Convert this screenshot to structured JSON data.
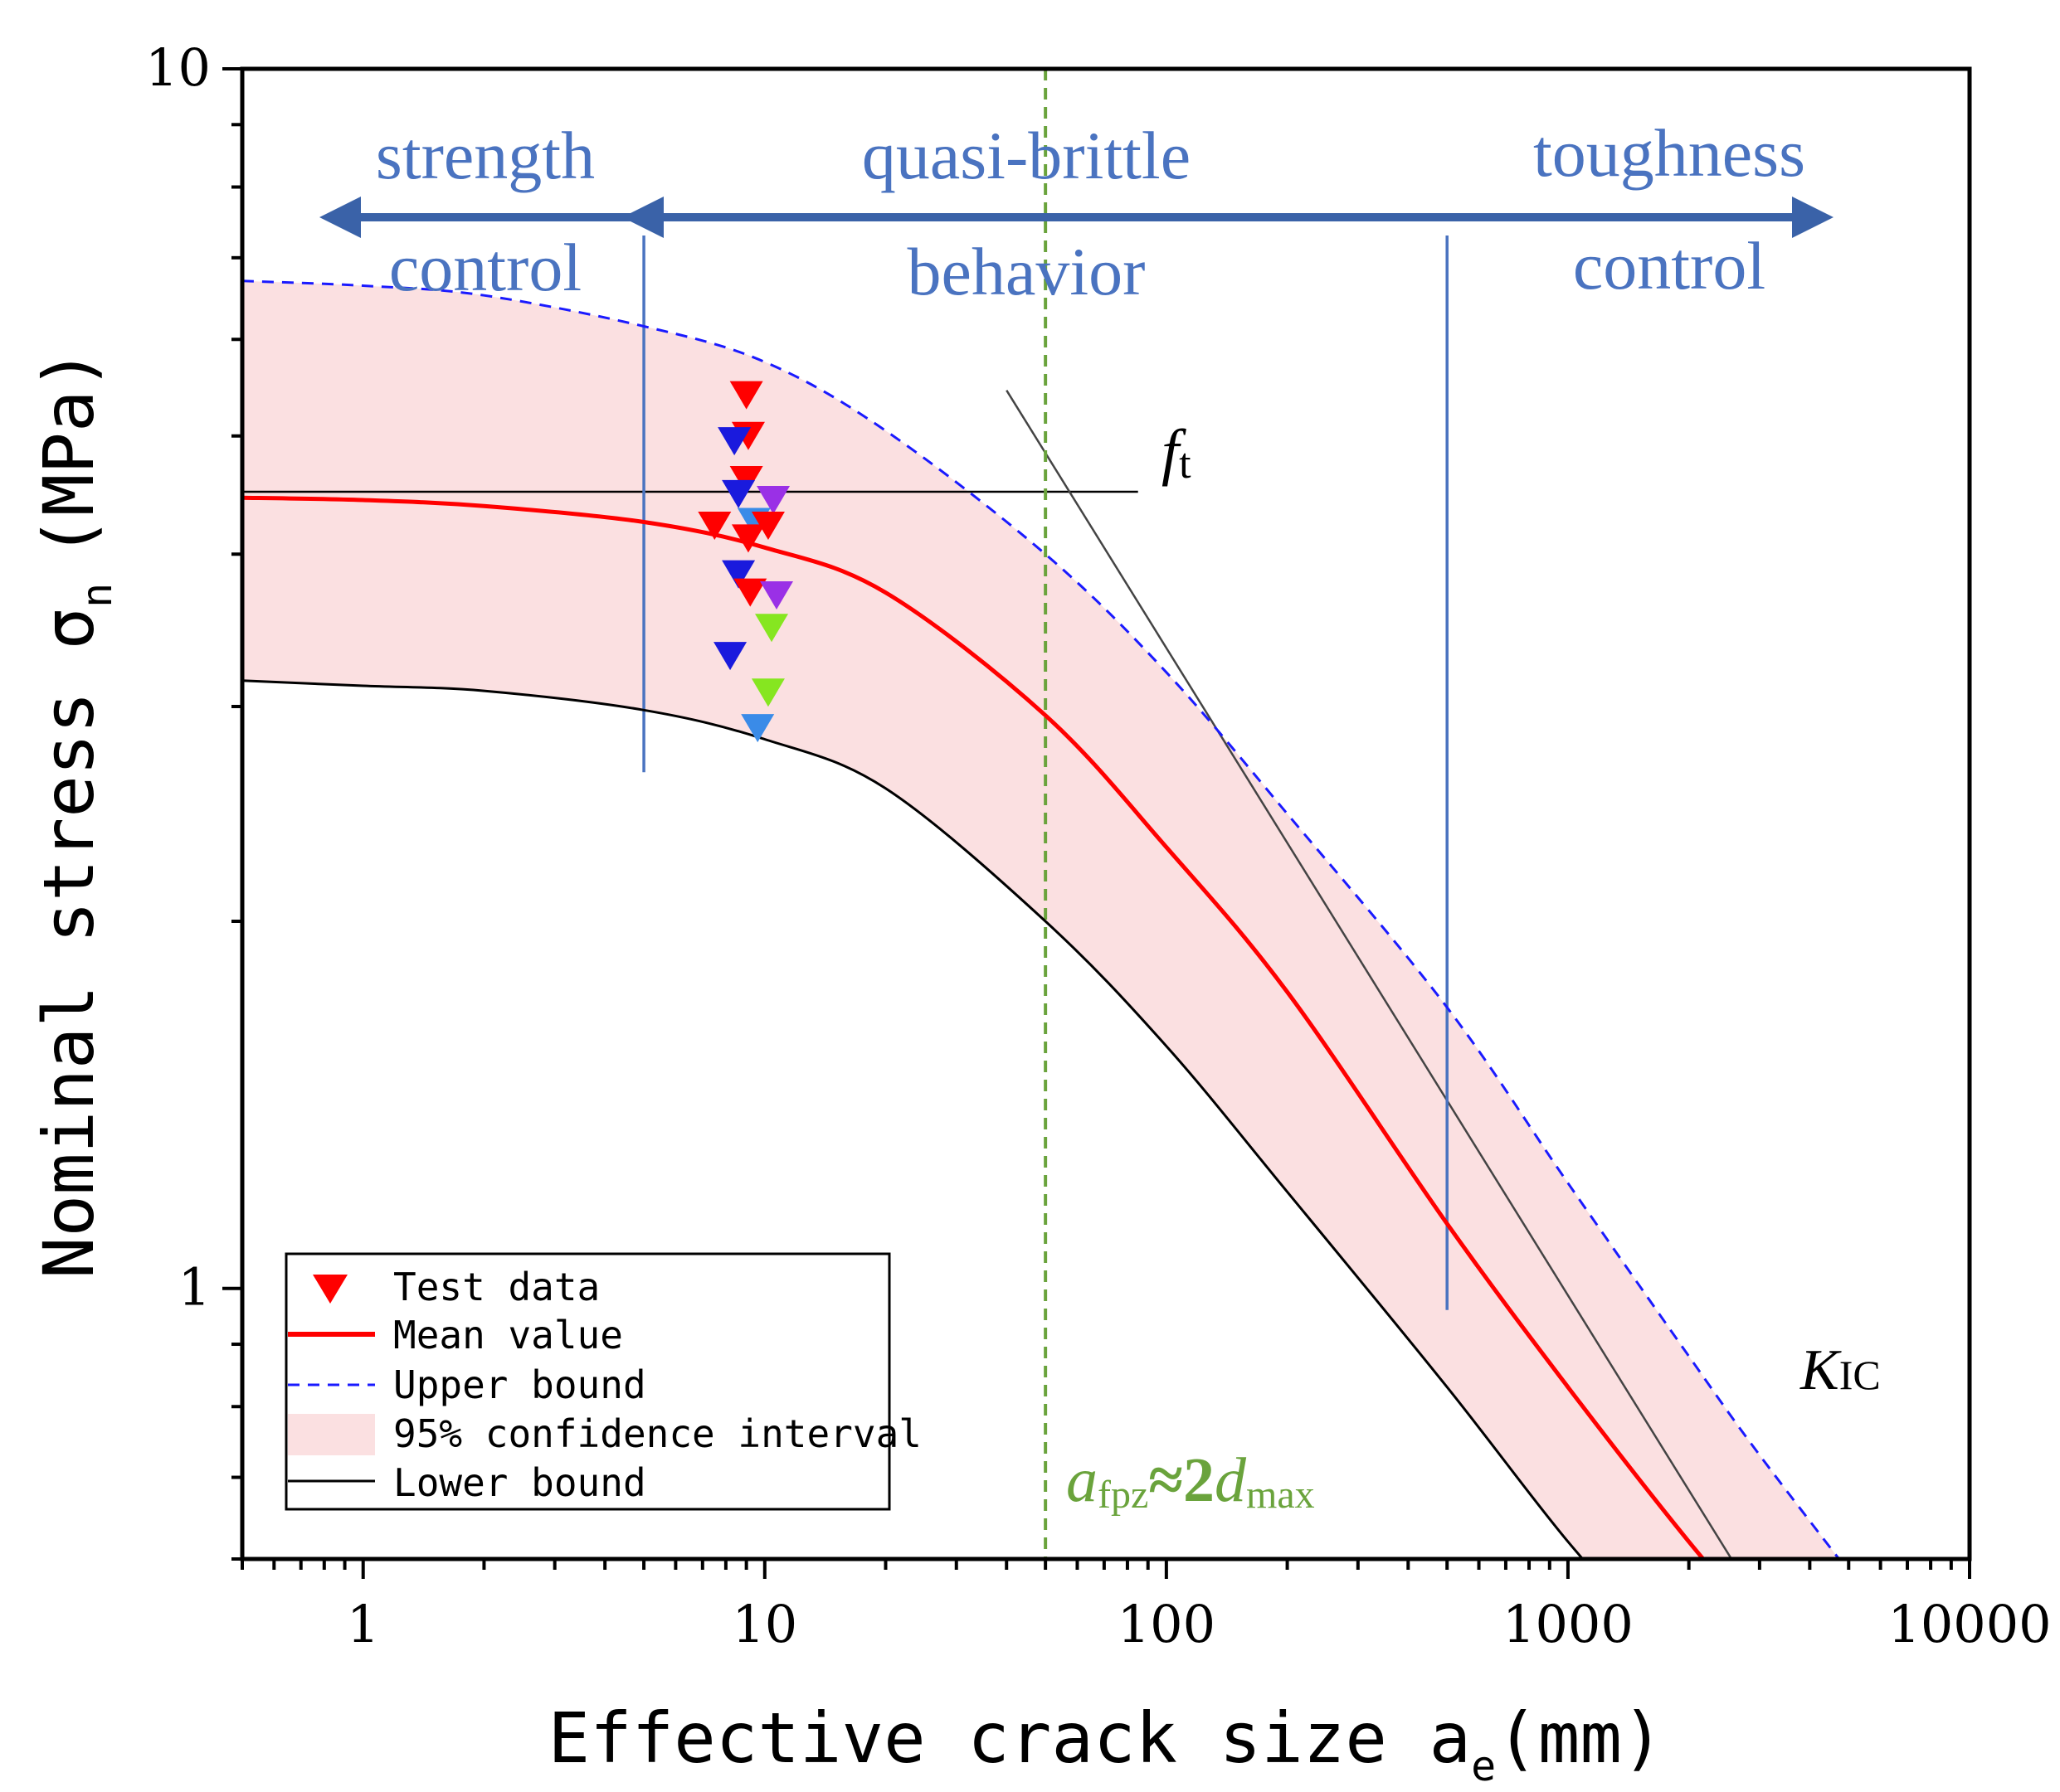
{
  "chart_data": {
    "type": "line",
    "xscale": "log",
    "yscale": "log",
    "xlim": [
      0.5,
      10000
    ],
    "ylim": [
      0.6,
      10
    ],
    "xticks": [
      1,
      10,
      100,
      1000,
      10000
    ],
    "xtick_labels": [
      "1",
      "10",
      "100",
      "1000",
      "10000"
    ],
    "yticks": [
      1,
      10
    ],
    "ytick_labels": [
      "1",
      "10"
    ],
    "xlabel": "Effective crack size a",
    "xlabel_sub": "e",
    "xlabel_unit": "(mm)",
    "ylabel": "Nominal stress σ",
    "ylabel_sub": "n",
    "ylabel_unit": "(MPa)",
    "series": [
      {
        "name": "Mean value",
        "color": "#ff0000",
        "x": [
          0.5,
          1,
          2,
          5,
          10,
          20,
          50,
          100,
          200,
          500,
          1000,
          2000,
          3500
        ],
        "y": [
          4.45,
          4.43,
          4.38,
          4.25,
          4.05,
          3.72,
          2.95,
          2.3,
          1.75,
          1.13,
          0.83,
          0.62,
          0.5
        ]
      },
      {
        "name": "Upper bound",
        "color": "#1a1aff",
        "style": "dashed",
        "x": [
          0.5,
          1,
          2,
          5,
          10,
          20,
          50,
          100,
          200,
          500,
          1000,
          2000,
          3000,
          5800
        ],
        "y": [
          6.7,
          6.64,
          6.52,
          6.15,
          5.75,
          5.05,
          4.0,
          3.2,
          2.45,
          1.7,
          1.22,
          0.88,
          0.73,
          0.55
        ]
      },
      {
        "name": "Lower bound",
        "color": "#000000",
        "x": [
          0.5,
          1,
          2,
          5,
          10,
          20,
          50,
          100,
          200,
          500,
          1000,
          1800
        ],
        "y": [
          3.15,
          3.12,
          3.09,
          2.98,
          2.82,
          2.57,
          2.0,
          1.58,
          1.2,
          0.83,
          0.62,
          0.5
        ]
      }
    ],
    "confidence_interval": {
      "name": "95% confidence interval",
      "color": "#fbe0e1",
      "x": [
        0.5,
        1,
        2,
        5,
        10,
        20,
        50,
        100,
        200,
        500,
        1000,
        2000,
        3000,
        5800
      ],
      "upper": [
        6.7,
        6.64,
        6.52,
        6.15,
        5.75,
        5.05,
        4.0,
        3.2,
        2.45,
        1.7,
        1.22,
        0.88,
        0.73,
        0.55
      ],
      "lower": [
        3.15,
        3.12,
        3.09,
        2.98,
        2.82,
        2.57,
        2.0,
        1.58,
        1.2,
        0.83,
        0.62,
        0.5,
        0.5,
        0.5
      ]
    },
    "test_data": {
      "name": "Test data",
      "points": [
        {
          "x": 9.0,
          "y": 5.4,
          "color": "#ff0000"
        },
        {
          "x": 9.1,
          "y": 5.0,
          "color": "#ff0000"
        },
        {
          "x": 8.4,
          "y": 4.95,
          "color": "#1a1add"
        },
        {
          "x": 9.0,
          "y": 4.6,
          "color": "#ff0000"
        },
        {
          "x": 8.6,
          "y": 4.48,
          "color": "#1a1add"
        },
        {
          "x": 10.5,
          "y": 4.43,
          "color": "#9a30e6"
        },
        {
          "x": 9.4,
          "y": 4.25,
          "color": "#3a8be8"
        },
        {
          "x": 7.5,
          "y": 4.22,
          "color": "#ff0000"
        },
        {
          "x": 10.2,
          "y": 4.22,
          "color": "#ff0000"
        },
        {
          "x": 9.1,
          "y": 4.12,
          "color": "#ff0000"
        },
        {
          "x": 8.6,
          "y": 3.85,
          "color": "#1a1add"
        },
        {
          "x": 9.2,
          "y": 3.72,
          "color": "#ff0000"
        },
        {
          "x": 10.7,
          "y": 3.7,
          "color": "#9a30e6"
        },
        {
          "x": 10.4,
          "y": 3.48,
          "color": "#86e620"
        },
        {
          "x": 8.2,
          "y": 3.3,
          "color": "#1a1add"
        },
        {
          "x": 10.2,
          "y": 3.08,
          "color": "#86e620"
        },
        {
          "x": 9.6,
          "y": 2.88,
          "color": "#3a8be8"
        }
      ]
    },
    "reference_lines": [
      {
        "label": "ft",
        "type": "horizontal",
        "y": 4.5,
        "x_range": [
          0.5,
          85
        ]
      },
      {
        "label": "KIC",
        "type": "asymptote",
        "x": [
          40,
          3600
        ],
        "y": [
          5.45,
          0.5
        ]
      },
      {
        "label": "a_fpz≈2d_max",
        "type": "vertical",
        "x": 50,
        "color": "#6aa33c",
        "style": "dashed"
      },
      {
        "type": "vertical",
        "x": 5,
        "y_range": [
          2.65,
          7.3
        ],
        "color": "#4a73c0"
      },
      {
        "type": "vertical",
        "x": 500,
        "y_range": [
          0.96,
          7.3
        ],
        "color": "#4a73c0"
      }
    ],
    "annotations": {
      "ft_main": "f",
      "ft_sub": "t",
      "kic_main": "K",
      "kic_sub": "IC",
      "afpz_a": "a",
      "afpz_sub1": "fpz",
      "afpz_mid": "≈2",
      "afpz_d": "d",
      "afpz_sub2": "max"
    },
    "regimes": [
      {
        "line1": "strength",
        "line2": "control"
      },
      {
        "line1": "quasi-brittle",
        "line2": "behavior"
      },
      {
        "line1": "toughness",
        "line2": "control"
      }
    ],
    "legend": {
      "placement": "bottom-left",
      "entries": [
        "Test data",
        "Mean value",
        "Upper bound",
        "95% confidence interval",
        "Lower bound"
      ]
    }
  }
}
